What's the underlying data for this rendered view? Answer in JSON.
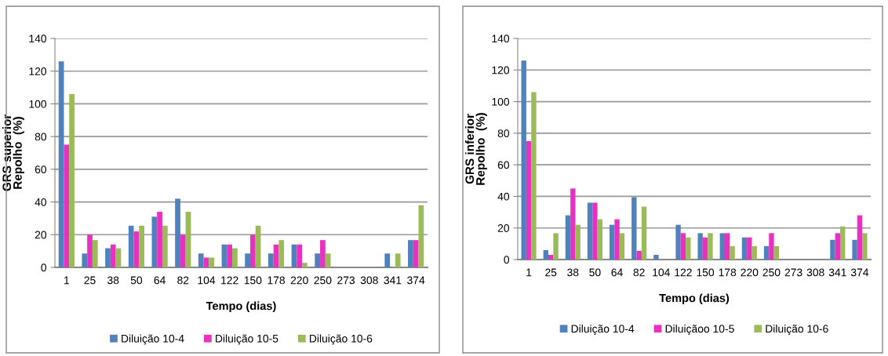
{
  "chart_data": [
    {
      "type": "bar",
      "xlabel": "Tempo (dias)",
      "ylabel": "GRS superior\nRepolho  (%)",
      "categories": [
        "1",
        "25",
        "38",
        "50",
        "64",
        "82",
        "104",
        "122",
        "150",
        "178",
        "220",
        "250",
        "273",
        "308",
        "341",
        "374"
      ],
      "ylim": [
        0,
        140
      ],
      "yticks": [
        0,
        20,
        40,
        60,
        80,
        100,
        120,
        140
      ],
      "grid": "y",
      "legend": "bottom",
      "series": [
        {
          "name": "Diluição 10-4",
          "color": "#4f81bd",
          "values": [
            126,
            8.5,
            11.7,
            25.5,
            31,
            42,
            8.5,
            14,
            8.5,
            8.5,
            14,
            8.5,
            0,
            0,
            8.5,
            16.7
          ]
        },
        {
          "name": "Diluição 10-5",
          "color": "#e831c0",
          "values": [
            75,
            20,
            14,
            22,
            34,
            20,
            6,
            14,
            20,
            14,
            14,
            16.7,
            0,
            0,
            0,
            16.7
          ]
        },
        {
          "name": "Diluição 10-6",
          "color": "#9bbb59",
          "values": [
            106,
            16.7,
            11.7,
            25.5,
            25.5,
            34,
            6,
            11.7,
            25.5,
            16.7,
            2.8,
            8.5,
            0,
            0,
            8.5,
            38
          ]
        }
      ]
    },
    {
      "type": "bar",
      "xlabel": "Tempo (dias)",
      "ylabel": "GRS inferior\nRepolho  (%)",
      "categories": [
        "1",
        "25",
        "38",
        "50",
        "64",
        "82",
        "104",
        "122",
        "150",
        "178",
        "220",
        "250",
        "273",
        "308",
        "341",
        "374"
      ],
      "ylim": [
        0,
        140
      ],
      "yticks": [
        0,
        20,
        40,
        60,
        80,
        100,
        120,
        140
      ],
      "grid": "y",
      "legend": "bottom",
      "series": [
        {
          "name": "Diluição 10-4",
          "color": "#4f81bd",
          "values": [
            126,
            6,
            28,
            36,
            22,
            39.5,
            3,
            22,
            16.7,
            16.7,
            14,
            8.5,
            0,
            0,
            12.5,
            12.5
          ]
        },
        {
          "name": "Diluiçãoo 10-5",
          "color": "#e831c0",
          "values": [
            75,
            3,
            45,
            36,
            25.5,
            5.5,
            0,
            16.7,
            14,
            16.7,
            14,
            16.7,
            0,
            0,
            16.7,
            28
          ]
        },
        {
          "name": "Diluição 10-6",
          "color": "#9bbb59",
          "values": [
            106,
            16.7,
            22,
            25.5,
            16.7,
            33.5,
            0,
            14,
            16.7,
            8.5,
            8.5,
            8.5,
            0,
            0,
            21,
            16.7
          ]
        }
      ]
    }
  ]
}
